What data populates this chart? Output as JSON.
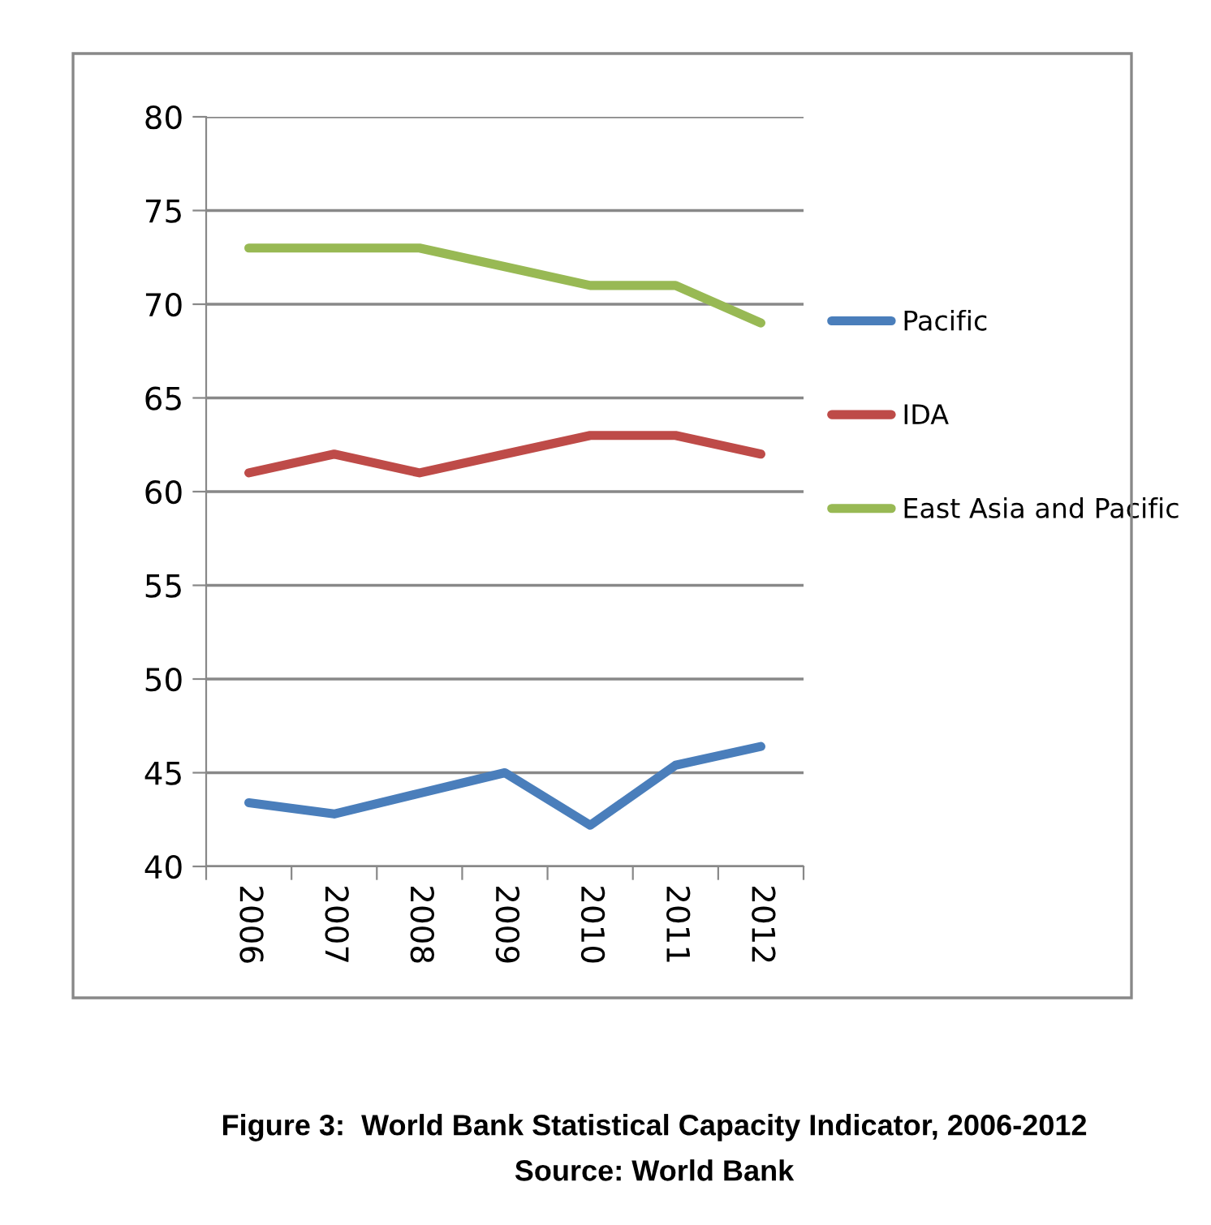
{
  "chart_data": {
    "type": "line",
    "categories": [
      "2006",
      "2007",
      "2008",
      "2009",
      "2010",
      "2011",
      "2012"
    ],
    "series": [
      {
        "name": "Pacific",
        "color": "#4a7ebb",
        "values": [
          43.4,
          42.8,
          43.9,
          45.0,
          42.2,
          45.4,
          46.4
        ]
      },
      {
        "name": "IDA",
        "color": "#be4b48",
        "values": [
          61,
          62,
          61,
          62,
          63,
          63,
          62
        ]
      },
      {
        "name": "East Asia and Pacific",
        "color": "#98b954",
        "values": [
          73,
          73,
          73,
          72,
          71,
          71,
          69
        ]
      }
    ],
    "ylim": [
      40,
      80
    ],
    "yticks": [
      40,
      45,
      50,
      55,
      60,
      65,
      70,
      75,
      80
    ],
    "grid": "y",
    "legend": "right",
    "marker": "none",
    "line_style": "solid",
    "annotations": [
      "Figure 3:  World Bank Statistical Capacity Indicator, 2006-2012",
      "Source: World Bank"
    ]
  }
}
